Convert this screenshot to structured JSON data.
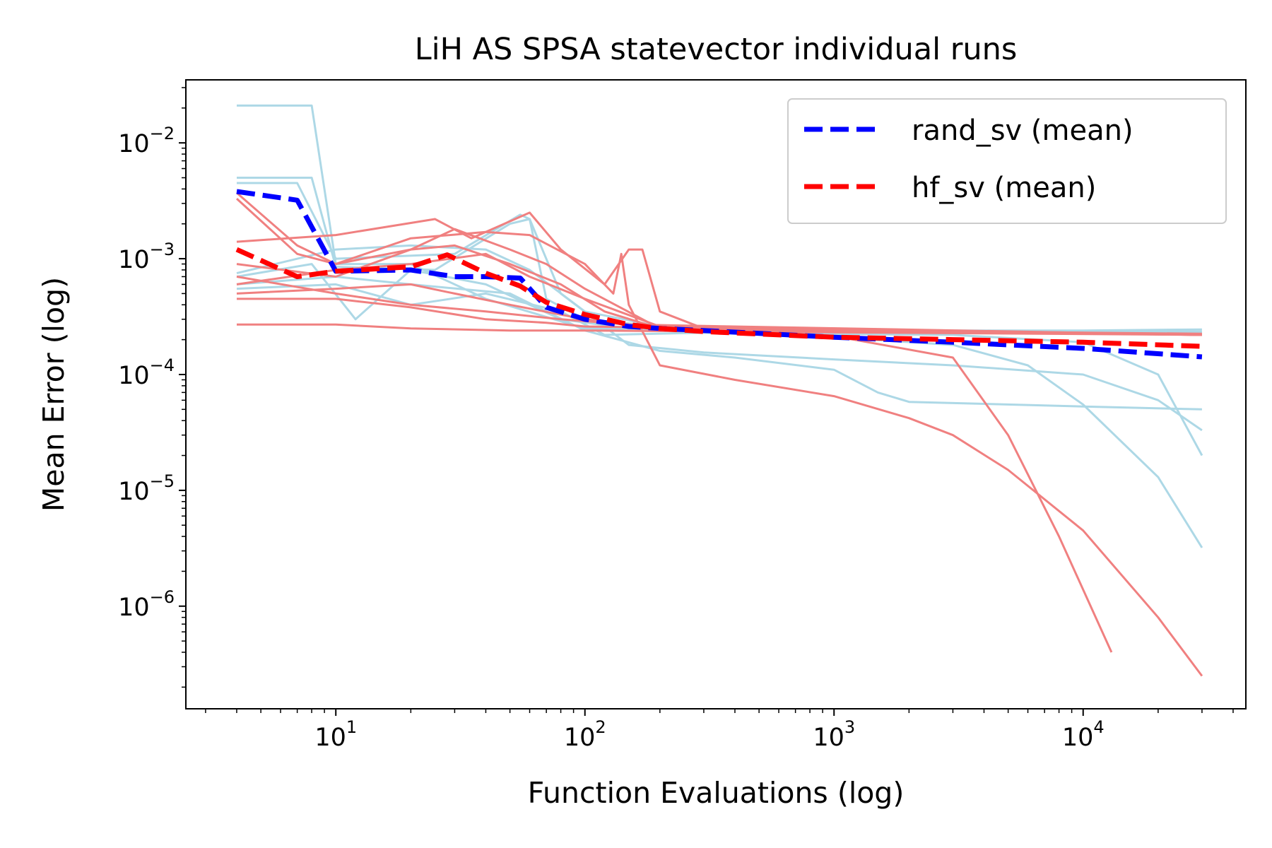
{
  "chart_data": {
    "type": "line",
    "title": "LiH AS SPSA statevector individual runs",
    "xlabel": "Function Evaluations (log)",
    "ylabel": "Mean Error (log)",
    "xscale": "log",
    "yscale": "log",
    "xlim": [
      2.5,
      45000
    ],
    "ylim": [
      1.3e-07,
      0.035
    ],
    "x_ticks": [
      {
        "value": 10,
        "base": "10",
        "exp": "1"
      },
      {
        "value": 100,
        "base": "10",
        "exp": "2"
      },
      {
        "value": 1000,
        "base": "10",
        "exp": "3"
      },
      {
        "value": 10000,
        "base": "10",
        "exp": "4"
      }
    ],
    "y_ticks": [
      {
        "value": 0.01,
        "base": "10",
        "exp": "−2"
      },
      {
        "value": 0.001,
        "base": "10",
        "exp": "−3"
      },
      {
        "value": 0.0001,
        "base": "10",
        "exp": "−4"
      },
      {
        "value": 1e-05,
        "base": "10",
        "exp": "−5"
      },
      {
        "value": 1e-06,
        "base": "10",
        "exp": "−6"
      }
    ],
    "legend": {
      "position": "top-right",
      "entries": [
        {
          "label": "rand_sv (mean)",
          "color": "#0000ff",
          "dash": "dashed"
        },
        {
          "label": "hf_sv (mean)",
          "color": "#ff0000",
          "dash": "dashed"
        }
      ]
    },
    "colors": {
      "rand_runs": "#add8e6",
      "hf_runs": "#f08080",
      "rand_mean": "#0000ff",
      "hf_mean": "#ff0000"
    },
    "series": [
      {
        "name": "rand_sv (mean)",
        "kind": "mean",
        "group": "rand",
        "points": [
          [
            4,
            0.0038
          ],
          [
            7,
            0.0032
          ],
          [
            10,
            0.00078
          ],
          [
            20,
            0.0008
          ],
          [
            30,
            0.0007
          ],
          [
            40,
            0.0007
          ],
          [
            55,
            0.00068
          ],
          [
            70,
            0.00038
          ],
          [
            100,
            0.0003
          ],
          [
            150,
            0.00026
          ],
          [
            200,
            0.00025
          ],
          [
            300,
            0.00024
          ],
          [
            1000,
            0.00021
          ],
          [
            3000,
            0.00019
          ],
          [
            10000,
            0.000168
          ],
          [
            30000,
            0.000142
          ]
        ]
      },
      {
        "name": "hf_sv (mean)",
        "kind": "mean",
        "group": "hf",
        "points": [
          [
            4,
            0.0012
          ],
          [
            7,
            0.0007
          ],
          [
            10,
            0.00078
          ],
          [
            20,
            0.00085
          ],
          [
            28,
            0.00108
          ],
          [
            40,
            0.00075
          ],
          [
            55,
            0.00058
          ],
          [
            70,
            0.00042
          ],
          [
            100,
            0.00033
          ],
          [
            150,
            0.00027
          ],
          [
            200,
            0.00025
          ],
          [
            300,
            0.000235
          ],
          [
            1000,
            0.00021
          ],
          [
            3000,
            0.0002
          ],
          [
            10000,
            0.00019
          ],
          [
            30000,
            0.000175
          ]
        ]
      },
      {
        "name": "rand_sv run 1",
        "kind": "run",
        "group": "rand",
        "points": [
          [
            4,
            0.021
          ],
          [
            8,
            0.021
          ],
          [
            10,
            0.0009
          ],
          [
            20,
            0.0009
          ],
          [
            40,
            0.00045
          ],
          [
            100,
            0.00025
          ],
          [
            300,
            0.00024
          ],
          [
            1000,
            0.00024
          ],
          [
            10000,
            0.00024
          ],
          [
            30000,
            0.000245
          ]
        ]
      },
      {
        "name": "rand_sv run 2",
        "kind": "run",
        "group": "rand",
        "points": [
          [
            4,
            0.005
          ],
          [
            8,
            0.005
          ],
          [
            10,
            0.00085
          ],
          [
            25,
            0.0008
          ],
          [
            50,
            0.002
          ],
          [
            60,
            0.0022
          ],
          [
            70,
            0.00045
          ],
          [
            100,
            0.0003
          ],
          [
            300,
            0.00024
          ],
          [
            30000,
            0.00023
          ]
        ]
      },
      {
        "name": "rand_sv run 3",
        "kind": "run",
        "group": "rand",
        "points": [
          [
            4,
            0.0045
          ],
          [
            7,
            0.0045
          ],
          [
            10,
            0.001
          ],
          [
            30,
            0.0011
          ],
          [
            55,
            0.0024
          ],
          [
            60,
            0.0022
          ],
          [
            80,
            0.0005
          ],
          [
            150,
            0.00018
          ],
          [
            300,
            0.000155
          ],
          [
            1000,
            0.000135
          ],
          [
            3000,
            0.00012
          ],
          [
            10000,
            0.0001
          ],
          [
            20000,
            6e-05
          ],
          [
            30000,
            3.3e-05
          ]
        ]
      },
      {
        "name": "rand_sv run 4",
        "kind": "run",
        "group": "rand",
        "points": [
          [
            4,
            0.0007
          ],
          [
            8,
            0.0009
          ],
          [
            12,
            0.0003
          ],
          [
            20,
            0.0008
          ],
          [
            40,
            0.0006
          ],
          [
            80,
            0.0003
          ],
          [
            150,
            0.00025
          ],
          [
            300,
            0.00023
          ],
          [
            1000,
            0.00021
          ],
          [
            3000,
            0.00018
          ],
          [
            6000,
            0.00012
          ],
          [
            10000,
            5.5e-05
          ],
          [
            20000,
            1.3e-05
          ],
          [
            30000,
            3.2e-06
          ]
        ]
      },
      {
        "name": "rand_sv run 5",
        "kind": "run",
        "group": "rand",
        "points": [
          [
            4,
            0.0006
          ],
          [
            10,
            0.0007
          ],
          [
            20,
            0.0006
          ],
          [
            50,
            0.0005
          ],
          [
            100,
            0.00024
          ],
          [
            200,
            0.00016
          ],
          [
            400,
            0.00014
          ],
          [
            1000,
            0.00011
          ],
          [
            1500,
            7e-05
          ],
          [
            2000,
            5.8e-05
          ],
          [
            10000,
            5.3e-05
          ],
          [
            30000,
            5e-05
          ]
        ]
      },
      {
        "name": "rand_sv run 6",
        "kind": "run",
        "group": "rand",
        "points": [
          [
            4,
            0.00055
          ],
          [
            10,
            0.0006
          ],
          [
            20,
            0.0004
          ],
          [
            40,
            0.0005
          ],
          [
            80,
            0.00035
          ],
          [
            120,
            0.00022
          ],
          [
            300,
            0.00023
          ],
          [
            3000,
            0.00022
          ],
          [
            10000,
            0.00019
          ],
          [
            20000,
            0.0001
          ],
          [
            30000,
            2e-05
          ]
        ]
      },
      {
        "name": "rand_sv run 7",
        "kind": "run",
        "group": "rand",
        "points": [
          [
            4,
            0.00075
          ],
          [
            10,
            0.0012
          ],
          [
            20,
            0.0013
          ],
          [
            40,
            0.0012
          ],
          [
            60,
            0.0008
          ],
          [
            100,
            0.00035
          ],
          [
            200,
            0.00026
          ],
          [
            1000,
            0.00024
          ],
          [
            30000,
            0.000235
          ]
        ]
      },
      {
        "name": "hf_sv run 1",
        "kind": "run",
        "group": "hf",
        "points": [
          [
            4,
            0.0037
          ],
          [
            7,
            0.0013
          ],
          [
            10,
            0.0009
          ],
          [
            20,
            0.0012
          ],
          [
            30,
            0.0018
          ],
          [
            50,
            0.0012
          ],
          [
            70,
            0.0009
          ],
          [
            100,
            0.00055
          ],
          [
            200,
            0.00025
          ],
          [
            500,
            0.00023
          ],
          [
            1000,
            0.000215
          ],
          [
            3000,
            0.00014
          ],
          [
            5000,
            3e-05
          ],
          [
            8000,
            4e-06
          ],
          [
            13000,
            4e-07
          ]
        ]
      },
      {
        "name": "hf_sv run 2",
        "kind": "run",
        "group": "hf",
        "points": [
          [
            4,
            0.0033
          ],
          [
            7,
            0.0011
          ],
          [
            10,
            0.0009
          ],
          [
            20,
            0.0015
          ],
          [
            40,
            0.0017
          ],
          [
            60,
            0.0016
          ],
          [
            100,
            0.0009
          ],
          [
            130,
            0.0005
          ],
          [
            140,
            0.0011
          ],
          [
            150,
            0.0004
          ],
          [
            200,
            0.00012
          ],
          [
            400,
            9e-05
          ],
          [
            1000,
            6.5e-05
          ],
          [
            2000,
            4.2e-05
          ],
          [
            3000,
            3e-05
          ],
          [
            5000,
            1.5e-05
          ],
          [
            10000,
            4.5e-06
          ],
          [
            20000,
            8e-07
          ],
          [
            30000,
            2.5e-07
          ]
        ]
      },
      {
        "name": "hf_sv run 3",
        "kind": "run",
        "group": "hf",
        "points": [
          [
            4,
            0.0014
          ],
          [
            10,
            0.0016
          ],
          [
            25,
            0.0022
          ],
          [
            35,
            0.0015
          ],
          [
            60,
            0.0025
          ],
          [
            80,
            0.0012
          ],
          [
            120,
            0.0006
          ],
          [
            150,
            0.0012
          ],
          [
            170,
            0.0012
          ],
          [
            200,
            0.00035
          ],
          [
            300,
            0.00025
          ],
          [
            30000,
            0.00022
          ]
        ]
      },
      {
        "name": "hf_sv run 4",
        "kind": "run",
        "group": "hf",
        "points": [
          [
            4,
            0.0006
          ],
          [
            10,
            0.0008
          ],
          [
            20,
            0.0009
          ],
          [
            40,
            0.0011
          ],
          [
            60,
            0.0007
          ],
          [
            100,
            0.00045
          ],
          [
            200,
            0.00026
          ],
          [
            30000,
            0.00022
          ]
        ]
      },
      {
        "name": "hf_sv run 5",
        "kind": "run",
        "group": "hf",
        "points": [
          [
            4,
            0.0005
          ],
          [
            10,
            0.00055
          ],
          [
            20,
            0.0006
          ],
          [
            30,
            0.0005
          ],
          [
            50,
            0.0004
          ],
          [
            100,
            0.0003
          ],
          [
            200,
            0.00025
          ],
          [
            30000,
            0.00022
          ]
        ]
      },
      {
        "name": "hf_sv run 6",
        "kind": "run",
        "group": "hf",
        "points": [
          [
            4,
            0.00045
          ],
          [
            10,
            0.00045
          ],
          [
            20,
            0.00038
          ],
          [
            40,
            0.0003
          ],
          [
            70,
            0.00028
          ],
          [
            100,
            0.00026
          ],
          [
            30000,
            0.00022
          ]
        ]
      },
      {
        "name": "hf_sv run 7",
        "kind": "run",
        "group": "hf",
        "points": [
          [
            4,
            0.00027
          ],
          [
            10,
            0.00027
          ],
          [
            20,
            0.00025
          ],
          [
            50,
            0.00024
          ],
          [
            100,
            0.00024
          ],
          [
            30000,
            0.00022
          ]
        ]
      },
      {
        "name": "hf_sv run 8",
        "kind": "run",
        "group": "hf",
        "points": [
          [
            4,
            0.0007
          ],
          [
            10,
            0.0005
          ],
          [
            20,
            0.0004
          ],
          [
            40,
            0.00035
          ],
          [
            80,
            0.0003
          ],
          [
            150,
            0.00027
          ],
          [
            30000,
            0.00022
          ]
        ]
      },
      {
        "name": "hf_sv run 9",
        "kind": "run",
        "group": "hf",
        "points": [
          [
            4,
            0.0009
          ],
          [
            10,
            0.0007
          ],
          [
            20,
            0.0012
          ],
          [
            30,
            0.0013
          ],
          [
            50,
            0.0009
          ],
          [
            80,
            0.0006
          ],
          [
            120,
            0.00035
          ],
          [
            200,
            0.00025
          ],
          [
            30000,
            0.000225
          ]
        ]
      }
    ]
  }
}
